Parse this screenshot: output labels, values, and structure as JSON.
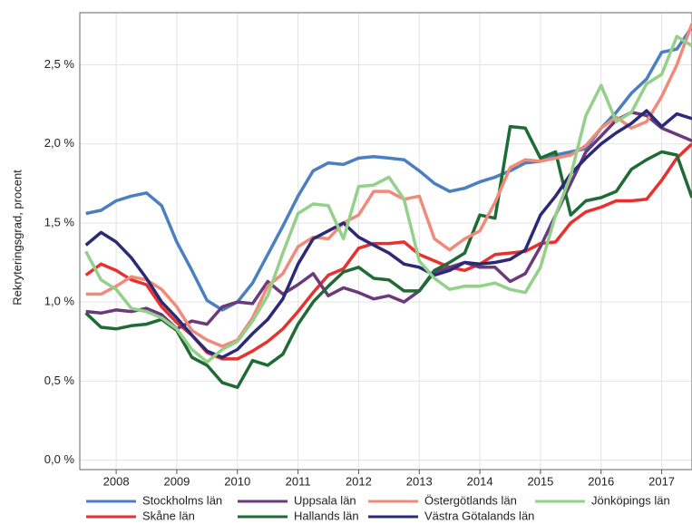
{
  "chart_data": {
    "type": "line",
    "y_label": "Rekryteringsgrad, procent",
    "x": [
      2007.5,
      2007.75,
      2008,
      2008.25,
      2008.5,
      2008.75,
      2009,
      2009.25,
      2009.5,
      2009.75,
      2010,
      2010.25,
      2010.5,
      2010.75,
      2011,
      2011.25,
      2011.5,
      2011.75,
      2012,
      2012.25,
      2012.5,
      2012.75,
      2013,
      2013.25,
      2013.5,
      2013.75,
      2014,
      2014.25,
      2014.5,
      2014.75,
      2015,
      2015.25,
      2015.5,
      2015.75,
      2016,
      2016.25,
      2016.5,
      2016.75,
      2017,
      2017.25,
      2017.5
    ],
    "xlim": [
      2007.4,
      2017.5
    ],
    "xticks": [
      2008,
      2009,
      2010,
      2011,
      2012,
      2013,
      2014,
      2015,
      2016,
      2017
    ],
    "ylim": [
      -0.06,
      2.83
    ],
    "yticks": [
      {
        "value": 0,
        "label": "0,0 %"
      },
      {
        "value": 0.5,
        "label": "0,5 %"
      },
      {
        "value": 1,
        "label": "1,0 %"
      },
      {
        "value": 1.5,
        "label": "1,5 %"
      },
      {
        "value": 2,
        "label": "2,0 %"
      },
      {
        "value": 2.5,
        "label": "2,5 %"
      }
    ],
    "grid": true,
    "legend": "bottom",
    "series": [
      {
        "name": "Stockholms län",
        "color": "#4a7fc1",
        "values": [
          1.56,
          1.58,
          1.64,
          1.67,
          1.69,
          1.61,
          1.38,
          1.2,
          1.01,
          0.95,
          1.0,
          1.12,
          1.3,
          1.48,
          1.67,
          1.83,
          1.88,
          1.87,
          1.91,
          1.92,
          1.91,
          1.9,
          1.83,
          1.75,
          1.7,
          1.72,
          1.76,
          1.79,
          1.83,
          1.88,
          1.89,
          1.93,
          1.95,
          1.97,
          2.1,
          2.2,
          2.32,
          2.41,
          2.58,
          2.6,
          2.74
        ]
      },
      {
        "name": "Skåne län",
        "color": "#e8312f",
        "values": [
          1.17,
          1.24,
          1.2,
          1.14,
          1.11,
          0.97,
          0.87,
          0.79,
          0.68,
          0.64,
          0.64,
          0.69,
          0.75,
          0.83,
          0.94,
          1.06,
          1.17,
          1.21,
          1.34,
          1.37,
          1.37,
          1.38,
          1.3,
          1.26,
          1.22,
          1.2,
          1.24,
          1.3,
          1.31,
          1.32,
          1.37,
          1.38,
          1.5,
          1.57,
          1.6,
          1.64,
          1.64,
          1.65,
          1.77,
          1.91,
          2.0
        ]
      },
      {
        "name": "Uppsala län",
        "color": "#6b3a7a",
        "values": [
          0.94,
          0.93,
          0.95,
          0.94,
          0.96,
          0.92,
          0.83,
          0.88,
          0.86,
          0.97,
          1.0,
          0.99,
          1.13,
          1.05,
          1.11,
          1.18,
          1.04,
          1.09,
          1.06,
          1.02,
          1.04,
          1.0,
          1.07,
          1.19,
          1.22,
          1.25,
          1.22,
          1.22,
          1.13,
          1.18,
          1.35,
          1.55,
          1.75,
          1.95,
          2.05,
          2.15,
          2.2,
          2.18,
          2.1,
          2.06,
          2.02
        ]
      },
      {
        "name": "Hallands län",
        "color": "#1e6b35",
        "values": [
          0.93,
          0.84,
          0.83,
          0.85,
          0.86,
          0.89,
          0.82,
          0.65,
          0.6,
          0.49,
          0.46,
          0.63,
          0.6,
          0.67,
          0.86,
          1.0,
          1.1,
          1.19,
          1.22,
          1.15,
          1.14,
          1.07,
          1.07,
          1.2,
          1.25,
          1.31,
          1.55,
          1.53,
          2.11,
          2.1,
          1.91,
          1.95,
          1.55,
          1.64,
          1.66,
          1.7,
          1.84,
          1.9,
          1.95,
          1.93,
          1.66
        ]
      },
      {
        "name": "Östergötlands län",
        "color": "#f08a7a",
        "values": [
          1.05,
          1.05,
          1.1,
          1.16,
          1.14,
          1.08,
          0.97,
          0.82,
          0.76,
          0.72,
          0.76,
          0.9,
          1.1,
          1.18,
          1.35,
          1.41,
          1.4,
          1.5,
          1.55,
          1.7,
          1.7,
          1.65,
          1.67,
          1.4,
          1.33,
          1.4,
          1.45,
          1.63,
          1.85,
          1.9,
          1.89,
          1.91,
          1.93,
          1.99,
          2.1,
          2.17,
          2.1,
          2.14,
          2.3,
          2.5,
          2.76
        ]
      },
      {
        "name": "Västra Götalands län",
        "color": "#2b2a78",
        "values": [
          1.36,
          1.44,
          1.38,
          1.28,
          1.15,
          1.0,
          0.9,
          0.79,
          0.69,
          0.65,
          0.7,
          0.8,
          0.89,
          1.02,
          1.24,
          1.4,
          1.45,
          1.5,
          1.41,
          1.36,
          1.31,
          1.24,
          1.22,
          1.17,
          1.2,
          1.25,
          1.24,
          1.25,
          1.27,
          1.33,
          1.55,
          1.67,
          1.81,
          1.91,
          2.0,
          2.07,
          2.13,
          2.21,
          2.11,
          2.19,
          2.16
        ]
      },
      {
        "name": "Jönköpings län",
        "color": "#93d08a",
        "values": [
          1.32,
          1.14,
          1.08,
          0.96,
          0.94,
          0.9,
          0.83,
          0.7,
          0.62,
          0.7,
          0.75,
          0.88,
          1.04,
          1.31,
          1.56,
          1.62,
          1.61,
          1.4,
          1.73,
          1.74,
          1.79,
          1.65,
          1.26,
          1.15,
          1.08,
          1.1,
          1.1,
          1.12,
          1.08,
          1.06,
          1.22,
          1.55,
          1.8,
          2.18,
          2.37,
          2.14,
          2.2,
          2.38,
          2.44,
          2.68,
          2.62
        ]
      }
    ]
  }
}
